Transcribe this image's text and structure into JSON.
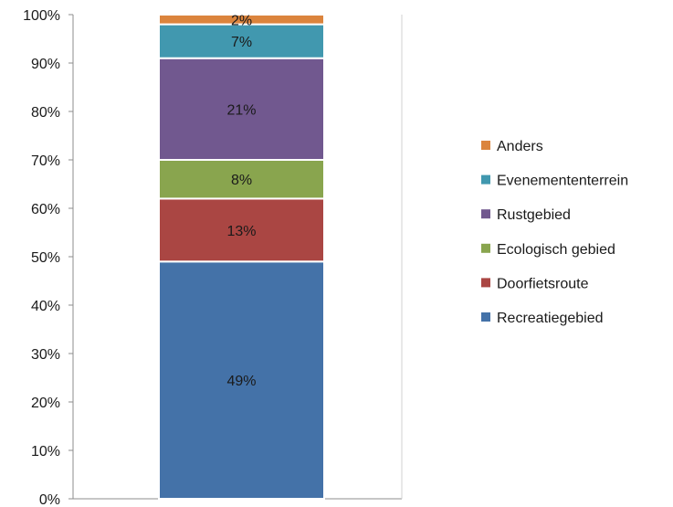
{
  "chart_data": {
    "type": "bar",
    "stacked": true,
    "percent": true,
    "categories": [
      ""
    ],
    "series": [
      {
        "name": "Recreatiegebied",
        "values": [
          49
        ],
        "label": "49%",
        "color": "#4472A8"
      },
      {
        "name": "Doorfietsroute",
        "values": [
          13
        ],
        "label": "13%",
        "color": "#AA4643"
      },
      {
        "name": "Ecologisch gebied",
        "values": [
          8
        ],
        "label": "8%",
        "color": "#89A54E"
      },
      {
        "name": "Rustgebied",
        "values": [
          21
        ],
        "label": "21%",
        "color": "#71588F"
      },
      {
        "name": "Evenemententerrein",
        "values": [
          7
        ],
        "label": "7%",
        "color": "#4198AF"
      },
      {
        "name": "Anders",
        "values": [
          2
        ],
        "label": "2%",
        "color": "#DB843D"
      }
    ],
    "ylim": [
      0,
      100
    ],
    "yticks": [
      "0%",
      "10%",
      "20%",
      "30%",
      "40%",
      "50%",
      "60%",
      "70%",
      "80%",
      "90%",
      "100%"
    ],
    "grid": false,
    "legend": "right",
    "legend_order": [
      "Anders",
      "Evenemententerrein",
      "Rustgebied",
      "Ecologisch gebied",
      "Doorfietsroute",
      "Recreatiegebied"
    ]
  }
}
